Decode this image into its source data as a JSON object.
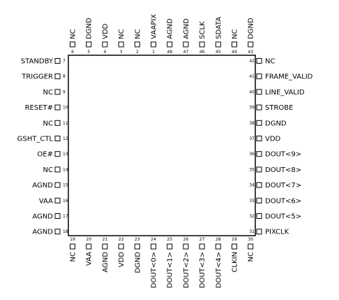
{
  "top_pins": [
    {
      "num": "6",
      "name": "NC"
    },
    {
      "num": "5",
      "name": "DGND"
    },
    {
      "num": "4",
      "name": "VDD"
    },
    {
      "num": "3",
      "name": "NC"
    },
    {
      "num": "2",
      "name": "NC"
    },
    {
      "num": "1",
      "name": "VAAPIX"
    },
    {
      "num": "48",
      "name": "AGND"
    },
    {
      "num": "47",
      "name": "AGND"
    },
    {
      "num": "46",
      "name": "SCLK"
    },
    {
      "num": "45",
      "name": "SDATA"
    },
    {
      "num": "44",
      "name": "NC"
    },
    {
      "num": "43",
      "name": "DGND"
    }
  ],
  "left_pins": [
    {
      "num": "7",
      "name": "STANDBY"
    },
    {
      "num": "8",
      "name": "TRIGGER"
    },
    {
      "num": "9",
      "name": "NC"
    },
    {
      "num": "10",
      "name": "RESET#"
    },
    {
      "num": "11",
      "name": "NC"
    },
    {
      "num": "12",
      "name": "GSHT_CTL"
    },
    {
      "num": "13",
      "name": "OE#"
    },
    {
      "num": "14",
      "name": "NC"
    },
    {
      "num": "15",
      "name": "AGND"
    },
    {
      "num": "16",
      "name": "VAA"
    },
    {
      "num": "17",
      "name": "AGND"
    },
    {
      "num": "18",
      "name": "AGND"
    }
  ],
  "right_pins": [
    {
      "num": "42",
      "name": "NC"
    },
    {
      "num": "41",
      "name": "FRAME_VALID"
    },
    {
      "num": "40",
      "name": "LINE_VALID"
    },
    {
      "num": "39",
      "name": "STROBE"
    },
    {
      "num": "38",
      "name": "DGND"
    },
    {
      "num": "37",
      "name": "VDD"
    },
    {
      "num": "36",
      "name": "DOUT<9>"
    },
    {
      "num": "35",
      "name": "DOUT<8>"
    },
    {
      "num": "34",
      "name": "DOUT<7>"
    },
    {
      "num": "33",
      "name": "DOUT<6>"
    },
    {
      "num": "32",
      "name": "DOUT<5>"
    },
    {
      "num": "31",
      "name": "PIXCLK"
    }
  ],
  "bottom_pins": [
    {
      "num": "19",
      "name": "NC"
    },
    {
      "num": "20",
      "name": "VAA"
    },
    {
      "num": "21",
      "name": "AGND"
    },
    {
      "num": "22",
      "name": "VDD"
    },
    {
      "num": "23",
      "name": "DGND"
    },
    {
      "num": "24",
      "name": "DOUT<0>"
    },
    {
      "num": "25",
      "name": "DOUT<1>"
    },
    {
      "num": "26",
      "name": "DOUT<2>"
    },
    {
      "num": "27",
      "name": "DOUT<3>"
    },
    {
      "num": "28",
      "name": "DOUT<4>"
    },
    {
      "num": "29",
      "name": "CLKIN"
    },
    {
      "num": "30",
      "name": "NC"
    }
  ]
}
